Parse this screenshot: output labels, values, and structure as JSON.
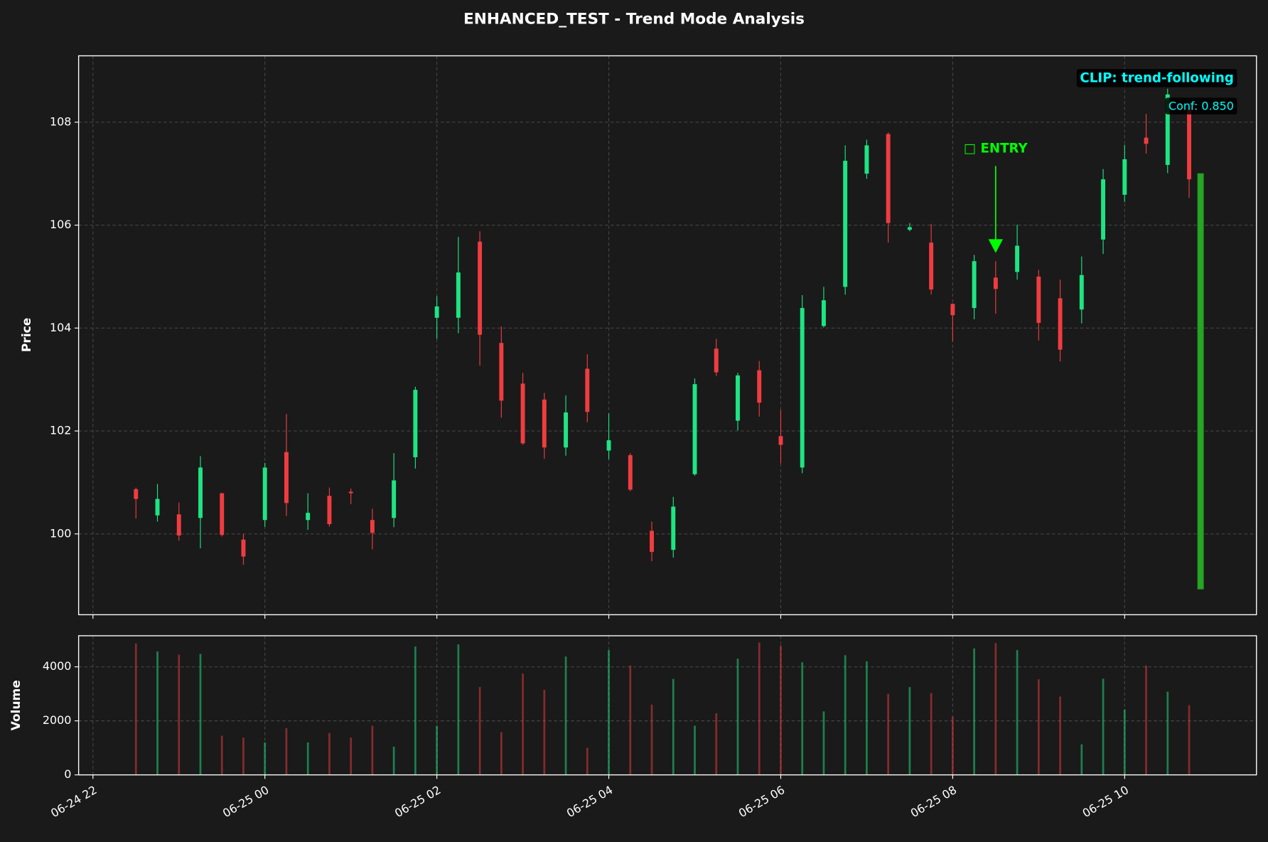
{
  "chart_data": [
    {
      "type": "candlestick",
      "title": "ENHANCED_TEST - Trend Mode Analysis",
      "ylabel": "Price",
      "x": [
        "06-24 22:30",
        "06-24 22:45",
        "06-24 23:00",
        "06-24 23:15",
        "06-24 23:30",
        "06-24 23:45",
        "06-25 00:00",
        "06-25 00:15",
        "06-25 00:30",
        "06-25 00:45",
        "06-25 01:00",
        "06-25 01:15",
        "06-25 01:30",
        "06-25 01:45",
        "06-25 02:00",
        "06-25 02:15",
        "06-25 02:30",
        "06-25 02:45",
        "06-25 03:00",
        "06-25 03:15",
        "06-25 03:30",
        "06-25 03:45",
        "06-25 04:00",
        "06-25 04:15",
        "06-25 04:30",
        "06-25 04:45",
        "06-25 05:00",
        "06-25 05:15",
        "06-25 05:30",
        "06-25 05:45",
        "06-25 06:00",
        "06-25 06:15",
        "06-25 06:30",
        "06-25 06:45",
        "06-25 07:00",
        "06-25 07:15",
        "06-25 07:30",
        "06-25 07:45",
        "06-25 08:00",
        "06-25 08:15",
        "06-25 08:30",
        "06-25 08:45",
        "06-25 09:00",
        "06-25 09:15",
        "06-25 09:30",
        "06-25 09:45",
        "06-25 10:00",
        "06-25 10:15",
        "06-25 10:30",
        "06-25 10:45"
      ],
      "open": [
        100.87,
        100.36,
        100.38,
        100.31,
        100.79,
        99.89,
        100.27,
        101.59,
        100.27,
        100.74,
        100.82,
        100.27,
        100.31,
        101.49,
        104.2,
        104.2,
        105.68,
        103.71,
        102.92,
        102.61,
        101.68,
        103.21,
        101.62,
        101.53,
        100.06,
        99.69,
        101.16,
        103.6,
        102.2,
        103.18,
        101.9,
        101.29,
        104.04,
        104.8,
        107.0,
        107.77,
        105.91,
        105.66,
        104.47,
        104.39,
        104.98,
        105.09,
        105.0,
        104.58,
        104.36,
        105.72,
        106.59,
        107.7,
        107.17,
        108.29
      ],
      "high": [
        100.9,
        100.97,
        100.61,
        101.51,
        100.8,
        100.0,
        101.38,
        102.33,
        100.79,
        100.9,
        100.88,
        100.49,
        101.57,
        102.86,
        104.62,
        105.77,
        105.88,
        104.03,
        103.13,
        102.74,
        102.69,
        103.49,
        102.34,
        101.57,
        100.24,
        100.72,
        103.02,
        103.79,
        103.13,
        103.36,
        102.41,
        104.64,
        104.8,
        107.55,
        107.66,
        107.8,
        106.04,
        106.02,
        104.48,
        105.42,
        105.3,
        106.01,
        105.13,
        104.94,
        105.39,
        107.09,
        107.56,
        108.16,
        108.65,
        108.36
      ],
      "low": [
        100.3,
        100.24,
        99.87,
        99.72,
        99.95,
        99.4,
        100.14,
        100.35,
        100.08,
        100.14,
        100.58,
        99.7,
        100.13,
        101.27,
        103.79,
        103.9,
        103.27,
        102.26,
        101.73,
        101.46,
        101.52,
        102.17,
        101.45,
        100.83,
        99.47,
        99.54,
        101.13,
        103.07,
        102.01,
        102.28,
        101.37,
        101.18,
        104.01,
        104.65,
        106.9,
        105.66,
        105.88,
        104.65,
        103.74,
        104.17,
        104.28,
        104.94,
        103.76,
        103.35,
        104.09,
        105.44,
        106.45,
        107.39,
        107.01,
        106.53
      ],
      "close": [
        100.68,
        100.68,
        99.97,
        101.29,
        99.98,
        99.56,
        101.29,
        100.6,
        100.41,
        100.19,
        100.79,
        100.02,
        101.04,
        102.8,
        104.42,
        105.08,
        103.87,
        102.59,
        101.76,
        101.68,
        102.36,
        102.37,
        101.82,
        100.86,
        99.65,
        100.53,
        102.91,
        103.14,
        103.08,
        102.55,
        101.73,
        104.39,
        104.54,
        107.25,
        107.55,
        106.04,
        105.96,
        104.75,
        104.25,
        105.3,
        104.76,
        105.6,
        104.1,
        103.58,
        105.03,
        106.89,
        107.28,
        107.58,
        108.54,
        106.89
      ],
      "up_color": "#1de582",
      "down_color": "#f03c40",
      "xlim": [
        "06-24 21:50",
        "06-25 11:32"
      ],
      "xticks": [
        "06-24 22:00",
        "06-25 00:00",
        "06-25 02:00",
        "06-25 04:00",
        "06-25 06:00",
        "06-25 08:00",
        "06-25 10:00"
      ],
      "ylim": [
        98.43,
        109.29
      ],
      "yticks": [
        100,
        102,
        104,
        106,
        108
      ],
      "grid": true,
      "signal_bar": {
        "x": "06-25 10:53",
        "low": 98.93,
        "high": 107.0,
        "color": "#22a822"
      },
      "entry": {
        "text": "□ ENTRY",
        "x": "06-25 08:30",
        "text_y": 107.48,
        "arrow_from": 107.15,
        "arrow_to": 105.46,
        "color": "#00ff00"
      },
      "badges": [
        {
          "text": "CLIP: trend-following",
          "color": "#00ffff"
        },
        {
          "text": "Conf: 0.850",
          "color": "#00ffff"
        }
      ]
    },
    {
      "type": "bar",
      "ylabel": "Volume",
      "x": [
        "06-24 22:30",
        "06-24 22:45",
        "06-24 23:00",
        "06-24 23:15",
        "06-24 23:30",
        "06-24 23:45",
        "06-25 00:00",
        "06-25 00:15",
        "06-25 00:30",
        "06-25 00:45",
        "06-25 01:00",
        "06-25 01:15",
        "06-25 01:30",
        "06-25 01:45",
        "06-25 02:00",
        "06-25 02:15",
        "06-25 02:30",
        "06-25 02:45",
        "06-25 03:00",
        "06-25 03:15",
        "06-25 03:30",
        "06-25 03:45",
        "06-25 04:00",
        "06-25 04:15",
        "06-25 04:30",
        "06-25 04:45",
        "06-25 05:00",
        "06-25 05:15",
        "06-25 05:30",
        "06-25 05:45",
        "06-25 06:00",
        "06-25 06:15",
        "06-25 06:30",
        "06-25 06:45",
        "06-25 07:00",
        "06-25 07:15",
        "06-25 07:30",
        "06-25 07:45",
        "06-25 08:00",
        "06-25 08:15",
        "06-25 08:30",
        "06-25 08:45",
        "06-25 09:00",
        "06-25 09:15",
        "06-25 09:30",
        "06-25 09:45",
        "06-25 10:00",
        "06-25 10:15",
        "06-25 10:30",
        "06-25 10:45"
      ],
      "values": [
        4866,
        4567,
        4448,
        4478,
        1450,
        1380,
        1200,
        1730,
        1200,
        1550,
        1380,
        1820,
        1040,
        4750,
        1820,
        4830,
        3250,
        1580,
        3750,
        3150,
        4380,
        1000,
        4620,
        4050,
        2600,
        3550,
        1820,
        2280,
        4300,
        4900,
        4790,
        4170,
        2350,
        4430,
        4200,
        3000,
        3250,
        3030,
        2150,
        4680,
        4880,
        4620,
        3540,
        2900,
        1130,
        3560,
        2420,
        4050,
        3080,
        2580
      ],
      "alpha": 0.5,
      "xlim": [
        "06-24 21:50",
        "06-25 11:32"
      ],
      "xticks": [
        {
          "value": "06-24 22:00",
          "label": "06-24 22"
        },
        {
          "value": "06-25 00:00",
          "label": "06-25 00"
        },
        {
          "value": "06-25 02:00",
          "label": "06-25 02"
        },
        {
          "value": "06-25 04:00",
          "label": "06-25 04"
        },
        {
          "value": "06-25 06:00",
          "label": "06-25 06"
        },
        {
          "value": "06-25 08:00",
          "label": "06-25 08"
        },
        {
          "value": "06-25 10:00",
          "label": "06-25 10"
        }
      ],
      "ylim": [
        0,
        5150
      ],
      "yticks": [
        0,
        2000,
        4000
      ],
      "grid": true
    }
  ]
}
